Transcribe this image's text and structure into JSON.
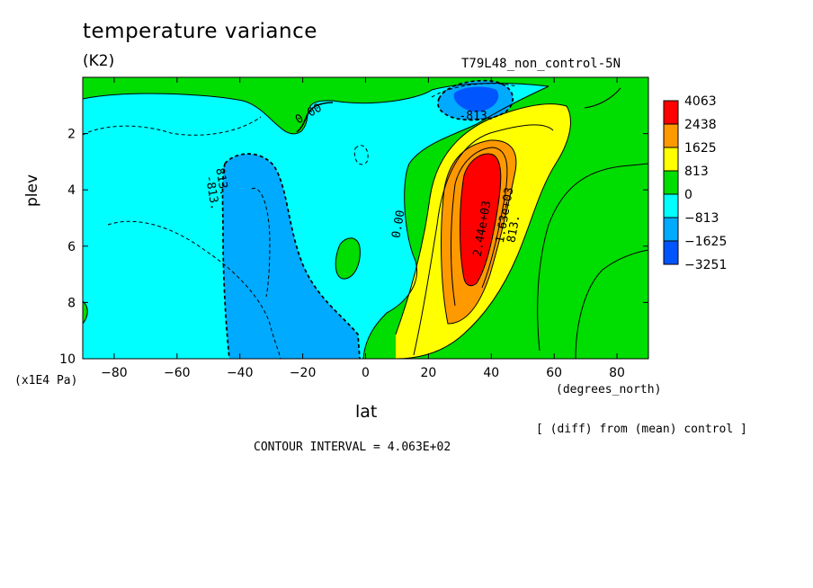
{
  "chart_data": {
    "type": "heatmap",
    "title": "temperature variance",
    "subtitle": "(K2)",
    "run_label": "T79L48_non_control-5N",
    "xlabel": "lat",
    "x_units": "(degrees_north)",
    "ylabel": "plev",
    "y_units": "(x1E4 Pa)",
    "xlim": [
      -90,
      90
    ],
    "ylim": [
      0,
      10
    ],
    "y_inverted": true,
    "x_ticks": [
      -80,
      -60,
      -40,
      -20,
      0,
      20,
      40,
      60,
      80
    ],
    "y_ticks": [
      2,
      4,
      6,
      8,
      10
    ],
    "colorbar": {
      "labels": [
        "4063",
        "2438",
        "1625",
        "813",
        "0",
        "−813",
        "−1625",
        "−3251"
      ],
      "colors": [
        "#ff0000",
        "#ff9900",
        "#ffff00",
        "#00dd00",
        "#00ffff",
        "#00aaff",
        "#0055ff"
      ]
    },
    "contour_labels": [
      "0.00",
      "-813.",
      "813.",
      "2.44e+03",
      "1.63e+03",
      "0.00",
      "-813.",
      "813."
    ],
    "contour_interval_note": "CONTOUR INTERVAL = 4.063E+02",
    "diff_note": "[ (diff) from (mean) control ]",
    "regions": [
      {
        "level": "0 to 813",
        "color": "#00dd00",
        "lat": [
          -90,
          90
        ],
        "plev": [
          0.2,
          10
        ]
      },
      {
        "level": "-813 to 0",
        "color": "#00ffff",
        "lat": [
          -87,
          15
        ],
        "plev": [
          0.4,
          10
        ]
      },
      {
        "level": "-1625 to -813",
        "color": "#00aaff",
        "lat": [
          -45,
          -5
        ],
        "plev": [
          2.9,
          10
        ]
      },
      {
        "level": "-1625 to -813",
        "color": "#00aaff",
        "lat": [
          23,
          38
        ],
        "plev": [
          0.3,
          1.3
        ]
      },
      {
        "level": "< -1625",
        "color": "#0055ff",
        "lat": [
          28,
          36
        ],
        "plev": [
          0.5,
          1.1
        ]
      },
      {
        "level": "813 to 1625",
        "color": "#ffff00",
        "lat": [
          10,
          65
        ],
        "plev": [
          1.0,
          10
        ]
      },
      {
        "level": "1625 to 2438",
        "color": "#ff9900",
        "lat": [
          26,
          46
        ],
        "plev": [
          2.3,
          8.3
        ]
      },
      {
        "level": "> 2438",
        "color": "#ff0000",
        "lat": [
          30,
          42
        ],
        "plev": [
          2.9,
          7.4
        ]
      }
    ]
  }
}
